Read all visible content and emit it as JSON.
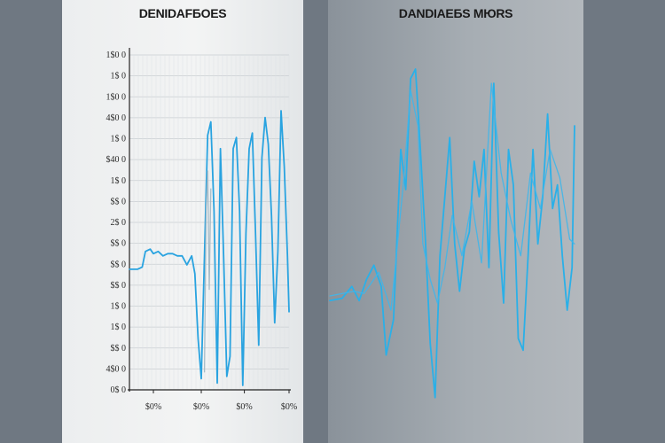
{
  "chart_data": [
    {
      "type": "line",
      "title": "DENIDAFБOES",
      "grid": true,
      "ylim": [
        0,
        15
      ],
      "y_tick_labels": [
        "1$0 0",
        "1$ 0",
        "1$0 0",
        "4$0 0",
        "1$ 0",
        "$40 0",
        "1$ 0",
        "$$ 0",
        "2$ 0",
        "$$ 0",
        "$$ 0",
        "$$ 0",
        "1$ 0",
        "1$ 0",
        "$$ 0",
        "4$0 0",
        "0$ 0"
      ],
      "x_tick_labels": [
        "$0%",
        "$0%",
        "$0%",
        "$0%"
      ],
      "series": [
        {
          "color": "#29a3e0",
          "x": [
            0,
            5,
            8,
            10,
            13,
            15,
            18,
            21,
            24,
            27,
            30,
            33,
            36,
            39,
            41,
            43,
            45,
            47,
            49,
            51,
            53,
            55,
            57,
            59,
            61,
            63,
            65,
            67,
            69,
            71,
            73,
            75,
            77,
            79,
            81,
            83,
            85,
            87,
            89,
            91,
            93,
            95,
            97,
            99,
            100
          ],
          "y": [
            5.4,
            5.4,
            5.5,
            6.2,
            6.3,
            6.1,
            6.2,
            6.0,
            6.1,
            6.1,
            6.0,
            6.0,
            5.6,
            6.0,
            5.2,
            2.3,
            0.5,
            6.0,
            11.4,
            12.0,
            8.0,
            0.3,
            10.8,
            6.0,
            0.6,
            1.5,
            10.8,
            11.3,
            8.0,
            0.2,
            7.0,
            10.8,
            11.5,
            7.0,
            2.0,
            10.4,
            12.2,
            11.0,
            7.8,
            3.0,
            6.2,
            12.5,
            10.0,
            6.0,
            3.5
          ]
        },
        {
          "color": "#9fb7c4",
          "x": [
            47,
            48,
            49,
            50,
            51
          ],
          "y": [
            0.8,
            8.0,
            9.8,
            4.5,
            9.0
          ]
        }
      ]
    },
    {
      "type": "line",
      "title": "DANDIAEБS MЮRS",
      "grid": false,
      "ylim": [
        0,
        15
      ],
      "series": [
        {
          "color": "#2ab0e8",
          "x": [
            0,
            5,
            9,
            12,
            15,
            18,
            21,
            23,
            26,
            29,
            31,
            33,
            35,
            37,
            39,
            41,
            43,
            45,
            47,
            49,
            51,
            53,
            55,
            57,
            59,
            61,
            63,
            65,
            67,
            69,
            71,
            73,
            75,
            77,
            79,
            81,
            83,
            85,
            87,
            89,
            91,
            93,
            95,
            97,
            99,
            100
          ],
          "y": [
            4.6,
            4.7,
            5.2,
            4.6,
            5.5,
            6.1,
            5.2,
            2.3,
            3.8,
            11.0,
            9.3,
            14.0,
            14.4,
            11.0,
            7.3,
            2.8,
            0.5,
            6.5,
            9.0,
            11.5,
            7.0,
            5.0,
            6.8,
            7.5,
            10.5,
            9.0,
            11.0,
            6.0,
            13.8,
            7.5,
            4.5,
            11.0,
            9.5,
            3.0,
            2.5,
            6.5,
            11.0,
            7.0,
            9.0,
            12.5,
            8.5,
            9.5,
            6.5,
            4.2,
            6.0,
            12.0
          ]
        },
        {
          "color": "#3fb6ea",
          "x": [
            0,
            10,
            14,
            20,
            25,
            30,
            33,
            36,
            38,
            41,
            44,
            47,
            50,
            54,
            58,
            62,
            66,
            70,
            74,
            78,
            82,
            86,
            90,
            94,
            98,
            100
          ],
          "y": [
            4.8,
            5.0,
            4.9,
            5.8,
            4.2,
            9.5,
            13.5,
            12.0,
            7.0,
            5.5,
            4.5,
            6.0,
            8.2,
            6.5,
            8.8,
            6.2,
            13.8,
            10.0,
            8.0,
            6.5,
            10.0,
            8.5,
            11.0,
            9.8,
            7.2,
            7.0
          ]
        }
      ]
    }
  ]
}
